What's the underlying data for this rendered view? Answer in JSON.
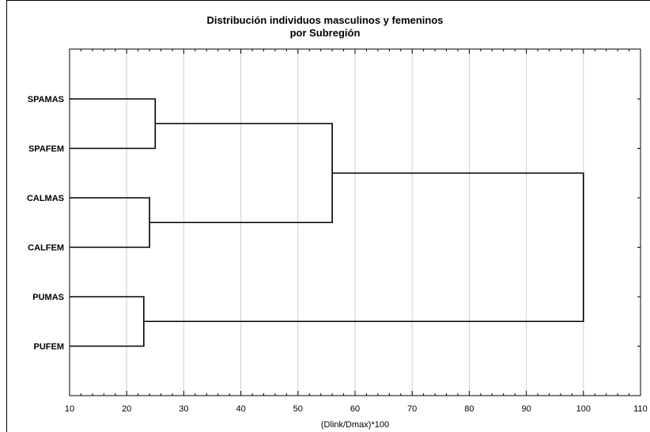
{
  "chart_data": {
    "type": "dendrogram",
    "title": "Distribución individuos masculinos y femeninos",
    "subtitle": "por Subregión",
    "xlabel": "(Dlink/Dmax)*100",
    "xlim": [
      10,
      110
    ],
    "xticks": [
      10,
      20,
      30,
      40,
      50,
      60,
      70,
      80,
      90,
      100,
      110
    ],
    "grid": true,
    "leaves": [
      "SPAMAS",
      "SPAFEM",
      "CALMAS",
      "CALFEM",
      "PUMAS",
      "PUFEM"
    ],
    "merges": [
      {
        "left": "SPAMAS",
        "right": "SPAFEM",
        "height": 25
      },
      {
        "left": "CALMAS",
        "right": "CALFEM",
        "height": 24
      },
      {
        "left": "PUMAS",
        "right": "PUFEM",
        "height": 23
      },
      {
        "left": "SPAMAS+SPAFEM",
        "right": "CALMAS+CALFEM",
        "height": 56
      },
      {
        "left": "SPAMAS+SPAFEM+CALMAS+CALFEM",
        "right": "PUMAS+PUFEM",
        "height": 100
      }
    ]
  }
}
